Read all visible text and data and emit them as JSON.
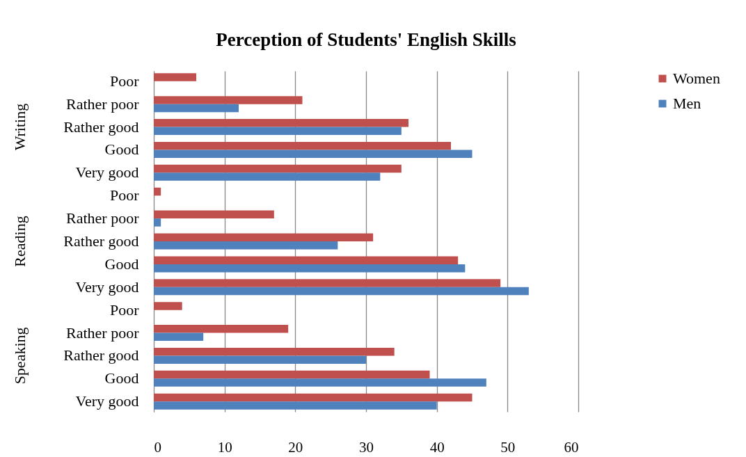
{
  "chart_data": {
    "type": "bar",
    "orientation": "horizontal",
    "title": "Perception of Students' English Skills",
    "categories": [
      "Poor",
      "Rather poor",
      "Rather good",
      "Good",
      "Very good",
      "Poor",
      "Rather poor",
      "Rather good",
      "Good",
      "Very good",
      "Poor",
      "Rather poor",
      "Rather good",
      "Good",
      "Very good"
    ],
    "annotations": [
      "Writing",
      "Reading",
      "Speaking"
    ],
    "series": [
      {
        "name": "Women",
        "color": "#c0504d",
        "values": [
          6,
          21,
          36,
          42,
          35,
          1,
          17,
          31,
          43,
          49,
          4,
          19,
          34,
          39,
          45
        ]
      },
      {
        "name": "Men",
        "color": "#4f81bd",
        "values": [
          0,
          12,
          35,
          45,
          32,
          0,
          1,
          26,
          44,
          53,
          0,
          7,
          30,
          47,
          40
        ]
      }
    ],
    "xlim": [
      0,
      60
    ],
    "xticks": [
      0,
      10,
      20,
      30,
      40,
      50,
      60
    ],
    "grid": "x",
    "legend": "right"
  }
}
